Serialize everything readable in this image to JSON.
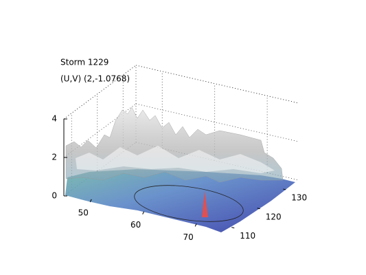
{
  "chart_data": {
    "type": "surface",
    "title": "Storm 1229",
    "subtitle": "(U,V) (2,-1.0768)",
    "xlim": [
      45,
      76
    ],
    "xticks": [
      50,
      60,
      70
    ],
    "ylim": [
      107,
      135
    ],
    "yticks": [
      110,
      120,
      130
    ],
    "zlim": [
      0,
      4
    ],
    "zticks": [
      0,
      2,
      4
    ],
    "grid": true
  }
}
